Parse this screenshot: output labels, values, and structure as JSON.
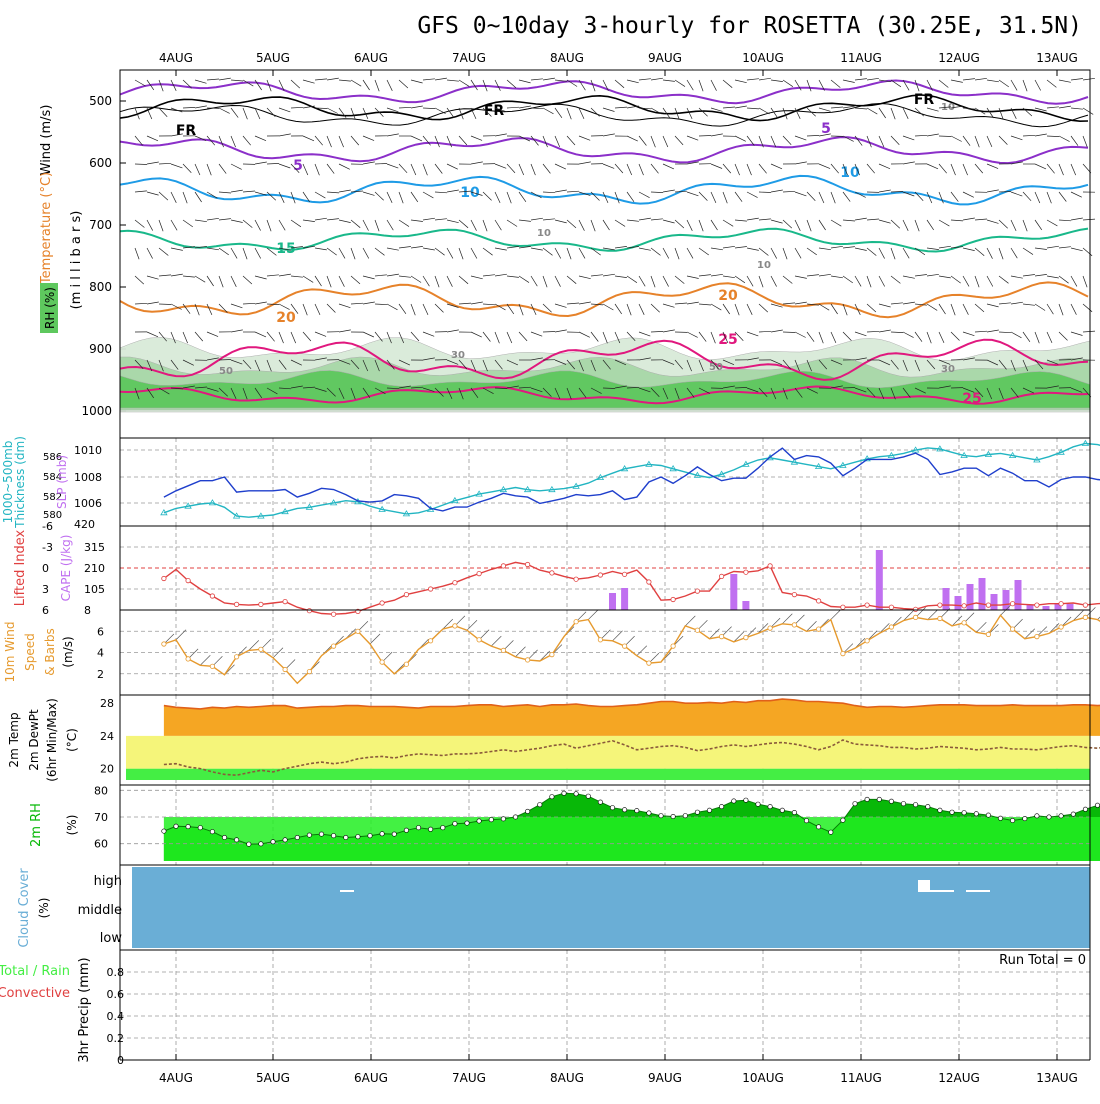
{
  "title": "GFS 0~10day 3-hourly for ROSETTA (30.25E, 31.5N)",
  "days": [
    "4AUG",
    "5AUG",
    "6AUG",
    "7AUG",
    "8AUG",
    "9AUG",
    "10AUG",
    "11AUG",
    "12AUG",
    "13AUG"
  ],
  "colors": {
    "frame": "#000000",
    "grid": "#999999",
    "rh_light": "#d9ead9",
    "rh_mid": "#a8d8a8",
    "rh_dark": "#5ec85e",
    "temp5": "#8b2fc9",
    "temp10": "#1e9be6",
    "temp15": "#19b88a",
    "temp20": "#e6822a",
    "temp25": "#e0187e",
    "slp": "#1f3fcc",
    "thickness": "#22b5c2",
    "lifted": "#e04040",
    "cape": "#c070f0",
    "wind10": "#e69a2e",
    "temp_orange": "#f5a623",
    "temp_yellow": "#f5f57a",
    "temp_green": "#44ee44",
    "temp_top": "#e0601a",
    "rh2m_dark": "#08b808",
    "rh2m_light": "#22ee22",
    "cloud": "#6aaed6"
  },
  "upper_panel": {
    "ylabels": [
      "Wind (m/s)",
      "Temperature (°C)",
      "RH (%)",
      "(m i l l i b a r s)"
    ],
    "pressure_ticks": [
      "500",
      "600",
      "700",
      "800",
      "900",
      "1000"
    ],
    "isotherm_labels": [
      "FR",
      "FR",
      "FR",
      "5",
      "5",
      "10",
      "10",
      "15",
      "20",
      "20",
      "25",
      "25",
      "10",
      "10",
      "10",
      "30",
      "30",
      "50",
      "50"
    ]
  },
  "slp_panel": {
    "ylabels": [
      "Thickness (dm)",
      "1000~500mb",
      "SLP (mb)"
    ],
    "thickness_ticks": [
      "586",
      "584",
      "582",
      "580"
    ],
    "slp_ticks": [
      "1010",
      "1008",
      "1006",
      "420"
    ]
  },
  "cape_panel": {
    "ylabels": [
      "Lifted Index",
      "CAPE (J/kg)"
    ],
    "li_ticks": [
      "-6",
      "-3",
      "0",
      "3",
      "6"
    ],
    "cape_ticks": [
      "315",
      "210",
      "105",
      "8"
    ]
  },
  "wind_panel": {
    "ylabels": [
      "10m Wind",
      "Speed",
      "& Barbs",
      "(m/s)"
    ],
    "ticks": [
      "6",
      "4",
      "2"
    ]
  },
  "temp_panel": {
    "ylabels": [
      "2m Temp",
      "2m DewPt",
      "(6hr Min/Max)",
      "(°C)"
    ],
    "ticks": [
      "28",
      "24",
      "20"
    ]
  },
  "rh_panel": {
    "ylabels": [
      "2m RH",
      "(%)"
    ],
    "ticks": [
      "80",
      "70",
      "60"
    ]
  },
  "cloud_panel": {
    "ylabels": [
      "Cloud Cover",
      "(%)"
    ],
    "levels": [
      "high",
      "middle",
      "low"
    ]
  },
  "precip_panel": {
    "ylabels": [
      "Total / Rain",
      "Convective",
      "3hr Precip (mm)"
    ],
    "ticks": [
      "0.8",
      "0.6",
      "0.4",
      "0.2",
      "0"
    ],
    "run_total": "Run Total = 0"
  },
  "chart_data": {
    "type": "line",
    "title": "GFS 0~10day 3-hourly for ROSETTA (30.25E, 31.5N)",
    "x_unit": "3-hourly steps (4AUG 00z = step 0)",
    "x_steps_start": -1,
    "series": [
      {
        "name": "SLP (mb)",
        "values": [
          1006.3,
          1006.8,
          1007.2,
          1007.6,
          1007.6,
          1007.9,
          1006.7,
          1006.8,
          1006.8,
          1006.8,
          1006.9,
          1006.3,
          1006.6,
          1007.0,
          1006.9,
          1006.5,
          1006.0,
          1005.9,
          1006.0,
          1006.5,
          1006.4,
          1006.2,
          1005.4,
          1005.2,
          1005.5,
          1005.5,
          1005.9,
          1006.2,
          1006.6,
          1006.4,
          1006.3,
          1005.8,
          1006.0,
          1006.2,
          1006.5,
          1006.4,
          1006.5,
          1006.8,
          1006.1,
          1006.3,
          1007.5,
          1007.9,
          1007.4,
          1008.0,
          1008.7,
          1008.1,
          1007.6,
          1007.8,
          1007.8,
          1008.6,
          1009.5,
          1010.2,
          1009.3,
          1009.6,
          1009.5,
          1009.0,
          1008.0,
          1008.6,
          1009.3,
          1009.3,
          1009.3,
          1009.5,
          1009.8,
          1009.3,
          1008.1,
          1008.3,
          1008.6,
          1008.6,
          1008.0,
          1008.6,
          1008.2,
          1007.6,
          1007.6,
          1007.1,
          1007.7,
          1007.9,
          1007.9,
          1007.7,
          1007.6,
          1007.2,
          1007.6,
          1008.1,
          1008.2,
          1007.6,
          1006.8,
          1006.4,
          1006.3,
          1005.4,
          1005.6,
          1006.5,
          1006.6,
          1006.5,
          1006.7,
          1006.3,
          1006.5,
          1007.3
        ]
      },
      {
        "name": "Thickness 1000~500mb (dm)",
        "values": [
          580.2,
          580.6,
          580.8,
          581.0,
          581.1,
          580.7,
          579.9,
          579.8,
          579.9,
          580.0,
          580.3,
          580.6,
          580.7,
          580.9,
          581.1,
          581.3,
          581.2,
          580.8,
          580.5,
          580.3,
          580.1,
          580.2,
          580.5,
          580.9,
          581.3,
          581.6,
          581.9,
          582.1,
          582.3,
          582.5,
          582.3,
          582.2,
          582.3,
          582.4,
          582.6,
          582.9,
          583.4,
          583.8,
          584.2,
          584.4,
          584.6,
          584.5,
          584.2,
          583.9,
          583.6,
          583.4,
          583.7,
          584.1,
          584.6,
          585.0,
          585.2,
          585.0,
          584.8,
          584.6,
          584.4,
          584.2,
          584.5,
          584.8,
          585.1,
          585.3,
          585.4,
          585.6,
          585.9,
          586.1,
          586.0,
          585.7,
          585.4,
          585.3,
          585.5,
          585.6,
          585.4,
          585.2,
          585.0,
          585.3,
          585.7,
          586.2,
          586.5,
          586.4,
          586.1,
          585.8,
          585.6,
          585.9,
          586.1,
          586.2,
          586.0,
          585.8,
          585.6,
          585.5,
          585.3,
          585.0,
          584.9,
          584.7
        ]
      },
      {
        "name": "Lifted Index",
        "values": [
          1.5,
          0.2,
          1.8,
          3.0,
          4.0,
          5.0,
          5.2,
          5.3,
          5.2,
          5.0,
          4.8,
          5.6,
          6.1,
          6.5,
          6.6,
          6.5,
          6.2,
          5.6,
          5.0,
          4.6,
          3.8,
          3.4,
          3.0,
          2.6,
          2.1,
          1.4,
          0.8,
          0.2,
          -0.3,
          -0.8,
          -0.5,
          0.3,
          0.7,
          1.2,
          1.6,
          1.4,
          1.0,
          0.5,
          0.9,
          0.3,
          2.0,
          4.6,
          4.5,
          4.0,
          3.3,
          3.3,
          1.2,
          0.5,
          0.6,
          0.4,
          -0.3,
          3.5,
          3.8,
          4.0,
          4.7,
          5.5,
          5.6,
          5.6,
          5.3,
          5.6,
          5.6,
          5.8,
          5.9,
          5.4,
          5.3,
          5.3,
          5.4,
          5.0,
          5.3,
          5.3,
          5.1,
          5.2,
          5.3,
          5.1,
          5.1,
          5.0,
          5.3,
          5.1,
          5.0,
          4.9,
          4.4,
          4.6,
          3.7,
          2.5,
          2.5,
          2.0,
          1.6,
          1.4,
          1.2,
          1.0,
          1.0,
          0.9,
          0.7,
          0.4,
          0.4,
          0.3
        ]
      },
      {
        "name": "CAPE (J/kg)",
        "values": [
          0,
          0,
          0,
          0,
          0,
          0,
          0,
          0,
          0,
          0,
          0,
          0,
          0,
          0,
          0,
          0,
          0,
          0,
          0,
          0,
          0,
          0,
          0,
          0,
          0,
          0,
          0,
          0,
          0,
          0,
          0,
          0,
          0,
          0,
          0,
          0,
          0,
          85,
          110,
          0,
          0,
          0,
          0,
          0,
          0,
          0,
          0,
          180,
          45,
          0,
          0,
          0,
          0,
          0,
          0,
          0,
          0,
          0,
          0,
          300,
          0,
          0,
          0,
          0,
          0,
          0,
          0,
          0,
          0,
          0,
          0,
          0,
          0,
          0,
          0,
          0,
          0,
          0,
          0,
          0,
          0,
          0,
          0,
          0,
          0,
          0,
          0,
          0,
          0,
          0,
          0,
          0,
          0,
          0,
          0,
          0,
          0,
          0,
          0,
          0,
          0,
          0,
          0,
          0,
          0,
          0,
          0,
          0,
          0,
          0,
          0,
          0,
          0,
          0,
          0,
          0,
          0,
          0,
          0,
          0,
          0,
          0,
          0,
          0,
          0,
          0,
          0,
          0,
          0,
          0,
          0,
          0,
          0,
          0,
          0,
          0,
          0,
          0,
          0,
          0,
          0,
          0,
          0,
          0,
          0,
          0,
          0,
          0,
          0,
          0,
          0,
          0,
          0,
          0,
          0,
          0,
          0,
          0,
          0
        ]
      },
      {
        "name": "10m Wind Speed (m/s)",
        "values": [
          4.8,
          5.2,
          3.4,
          2.8,
          2.7,
          1.9,
          3.6,
          4.2,
          4.3,
          3.5,
          2.4,
          1.1,
          2.2,
          3.7,
          4.6,
          5.3,
          6.0,
          4.8,
          3.1,
          2.0,
          2.9,
          4.3,
          5.1,
          6.2,
          6.5,
          6.1,
          5.2,
          4.6,
          4.2,
          3.6,
          3.3,
          3.2,
          3.8,
          5.5,
          6.9,
          7.1,
          5.2,
          5.1,
          4.6,
          3.7,
          3.0,
          3.1,
          4.6,
          6.5,
          6.1,
          5.3,
          5.5,
          5.0,
          5.4,
          5.8,
          6.3,
          6.7,
          6.6,
          6.0,
          6.2,
          7.1,
          3.9,
          4.4,
          5.1,
          5.8,
          6.4,
          7.0,
          7.3,
          7.1,
          7.2,
          6.5,
          6.8,
          5.9,
          5.7,
          7.5,
          6.2,
          5.3,
          5.5,
          5.8,
          6.4,
          7.0,
          7.3,
          7.1,
          6.4,
          5.7,
          5.0,
          4.8,
          5.3,
          5.7,
          6.4,
          6.7,
          6.8,
          6.3,
          5.1,
          4.9
        ]
      },
      {
        "name": "2m Temp (°C)",
        "values": [
          27.7,
          27.5,
          27.4,
          27.3,
          27.5,
          27.4,
          27.6,
          27.5,
          27.6,
          27.7,
          27.7,
          27.4,
          27.5,
          27.6,
          27.6,
          27.7,
          27.7,
          27.6,
          27.6,
          27.6,
          27.5,
          27.4,
          27.6,
          27.6,
          27.6,
          27.7,
          27.8,
          27.8,
          27.6,
          27.7,
          27.8,
          27.6,
          27.8,
          27.8,
          27.9,
          27.7,
          27.6,
          27.6,
          27.7,
          27.8,
          28.0,
          28.2,
          28.2,
          28.0,
          28.0,
          28.1,
          28.0,
          28.2,
          28.1,
          28.3,
          28.3,
          28.5,
          28.4,
          28.2,
          28.2,
          28.1,
          28.0,
          27.7,
          27.5,
          27.6,
          27.6,
          27.5,
          27.6,
          27.7,
          27.8,
          27.8,
          27.8,
          27.7,
          27.7,
          27.7,
          27.8,
          27.7,
          27.7,
          27.7,
          27.7,
          27.8,
          27.8,
          27.7,
          27.8,
          27.7,
          27.6,
          27.7,
          27.8,
          27.7,
          27.9,
          27.8,
          27.8,
          27.8,
          27.9,
          27.9,
          27.8,
          27.7
        ]
      },
      {
        "name": "2m DewPt (°C)",
        "values": [
          20.5,
          20.6,
          20.2,
          20.0,
          19.6,
          19.3,
          19.2,
          19.5,
          19.8,
          19.6,
          20.0,
          20.3,
          20.6,
          20.8,
          20.6,
          20.8,
          21.2,
          21.4,
          21.5,
          21.3,
          21.6,
          21.8,
          21.7,
          21.6,
          21.8,
          21.8,
          21.9,
          22.1,
          22.3,
          22.1,
          22.3,
          22.5,
          22.8,
          23.0,
          22.5,
          22.8,
          23.1,
          23.4,
          22.9,
          22.3,
          22.5,
          22.7,
          22.8,
          22.6,
          22.2,
          22.4,
          22.7,
          22.9,
          22.7,
          22.9,
          23.1,
          23.2,
          23.0,
          22.7,
          22.3,
          22.7,
          23.5,
          23.0,
          22.9,
          22.8,
          22.6,
          22.6,
          22.4,
          22.5,
          22.7,
          22.6,
          22.5,
          22.3,
          22.4,
          22.6,
          22.4,
          22.4,
          22.3,
          22.5,
          22.7,
          22.8,
          22.6,
          22.5,
          22.7,
          23.0,
          23.2,
          23.5,
          22.8,
          22.8,
          22.6,
          22.7,
          22.9,
          22.8,
          22.7,
          22.6,
          22.7,
          22.8
        ]
      },
      {
        "name": "2m RH (%)",
        "values": [
          64.7,
          66.5,
          66.4,
          66.0,
          64.5,
          62.3,
          61.4,
          59.8,
          59.9,
          60.7,
          61.4,
          62.3,
          63.2,
          63.6,
          63.0,
          62.3,
          62.6,
          63.0,
          63.7,
          63.6,
          65.0,
          66.0,
          65.4,
          66.0,
          67.5,
          67.7,
          68.5,
          69.0,
          69.3,
          70.0,
          72.1,
          74.6,
          77.6,
          78.9,
          78.7,
          77.8,
          75.6,
          73.5,
          72.7,
          72.4,
          71.5,
          70.5,
          70.2,
          70.5,
          71.8,
          72.5,
          73.9,
          76.0,
          76.3,
          74.8,
          73.9,
          72.5,
          71.7,
          68.6,
          66.3,
          64.3,
          68.8,
          75.0,
          76.6,
          76.6,
          75.9,
          75.0,
          74.6,
          73.9,
          72.5,
          71.8,
          71.6,
          71.2,
          70.7,
          69.5,
          68.7,
          69.4,
          70.4,
          70.0,
          70.4,
          71.1,
          72.9,
          74.4,
          75.6,
          75.6,
          74.4,
          74.3,
          72.9,
          72.5,
          71.8,
          71.5,
          70.8,
          71.0,
          71.5,
          72.5,
          72.2,
          72.2
        ]
      },
      {
        "name": "3hr Precip (mm)",
        "values": [
          0,
          0,
          0,
          0,
          0,
          0,
          0,
          0,
          0,
          0,
          0,
          0,
          0,
          0,
          0,
          0,
          0,
          0,
          0,
          0
        ]
      }
    ],
    "ylim": {
      "slp": [
        1004,
        1011
      ],
      "thickness": [
        579,
        587
      ],
      "lifted": [
        6,
        -6
      ],
      "cape": [
        0,
        420
      ],
      "wind": [
        0,
        8
      ],
      "temp": [
        18,
        29
      ],
      "rh": [
        52,
        82
      ],
      "precip": [
        0,
        1
      ]
    },
    "legend": "none",
    "grid": true
  }
}
